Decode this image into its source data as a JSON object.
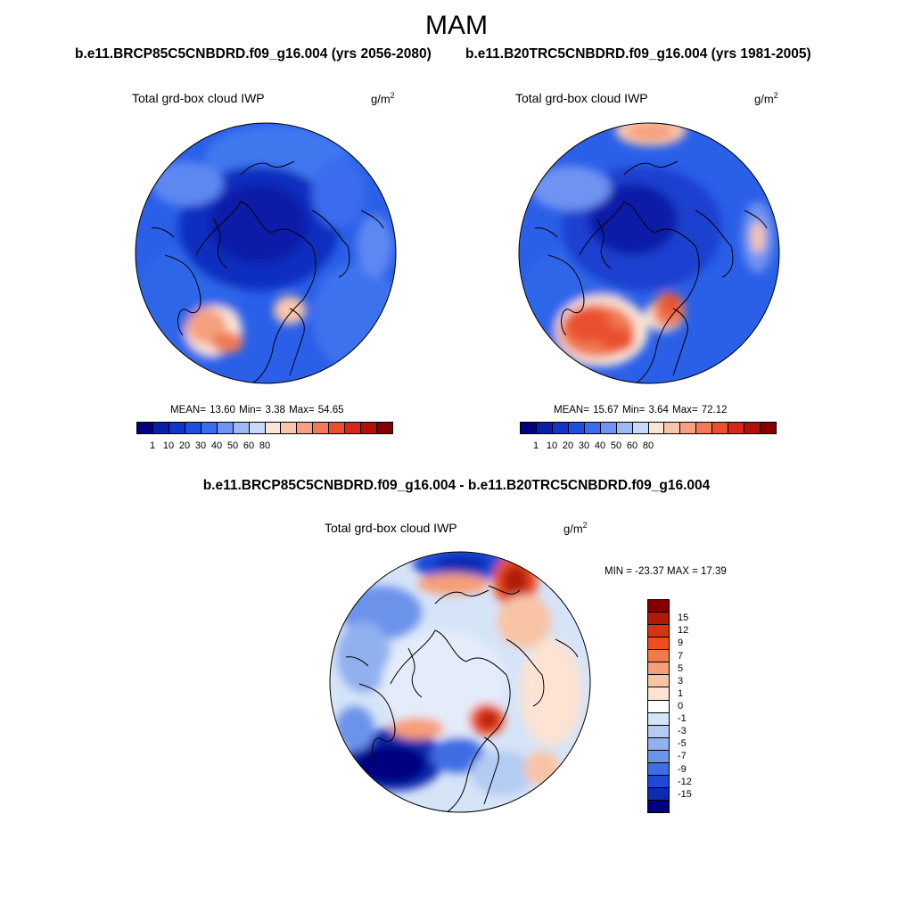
{
  "title": "MAM",
  "panels": [
    {
      "id": "future",
      "case_title": "b.e11.BRCP85C5CNBDRD.f09_g16.004 (yrs 2056-2080)",
      "variable": "Total grd-box cloud IWP",
      "units_base": "g/m",
      "units_exp": "2",
      "stats": "MEAN=  13.60  Min=   3.38  Max=  54.65"
    },
    {
      "id": "historical",
      "case_title": "b.e11.B20TRC5CNBDRD.f09_g16.004 (yrs 1981-2005)",
      "variable": "Total grd-box cloud IWP",
      "units_base": "g/m",
      "units_exp": "2",
      "stats": "MEAN=  15.67  Min=   3.64  Max=  72.12"
    }
  ],
  "abs_colorbar": {
    "colors": [
      "#000080",
      "#0a1fa8",
      "#1035c8",
      "#1f4fe0",
      "#3a6cf0",
      "#6e93f2",
      "#9fb8f5",
      "#c9daf8",
      "#fbe5d6",
      "#f8c6ac",
      "#f5a07e",
      "#f07a55",
      "#e9512d",
      "#d6281a",
      "#b11208",
      "#840000"
    ],
    "labels": [
      "1",
      "10",
      "20",
      "30",
      "40",
      "50",
      "60",
      "80"
    ]
  },
  "difference": {
    "title": "b.e11.BRCP85C5CNBDRD.f09_g16.004 - b.e11.B20TRC5CNBDRD.f09_g16.004",
    "variable": "Total grd-box cloud IWP",
    "units_base": "g/m",
    "units_exp": "2",
    "stats": "MIN = -23.37 MAX =  17.39",
    "colors": [
      "#840000",
      "#b21a08",
      "#d23414",
      "#ef4e22",
      "#f47a4c",
      "#f79e78",
      "#f9c4a6",
      "#fce3d3",
      "#ffffff",
      "#d6e4f8",
      "#b4cbf3",
      "#90b0ef",
      "#6c93ea",
      "#3f6de3",
      "#1e48d6",
      "#0e2ab0",
      "#000080"
    ],
    "labels": [
      "15",
      "12",
      "9",
      "7",
      "5",
      "3",
      "1",
      "0",
      "-1",
      "-3",
      "-5",
      "-7",
      "-9",
      "-12",
      "-15"
    ]
  }
}
